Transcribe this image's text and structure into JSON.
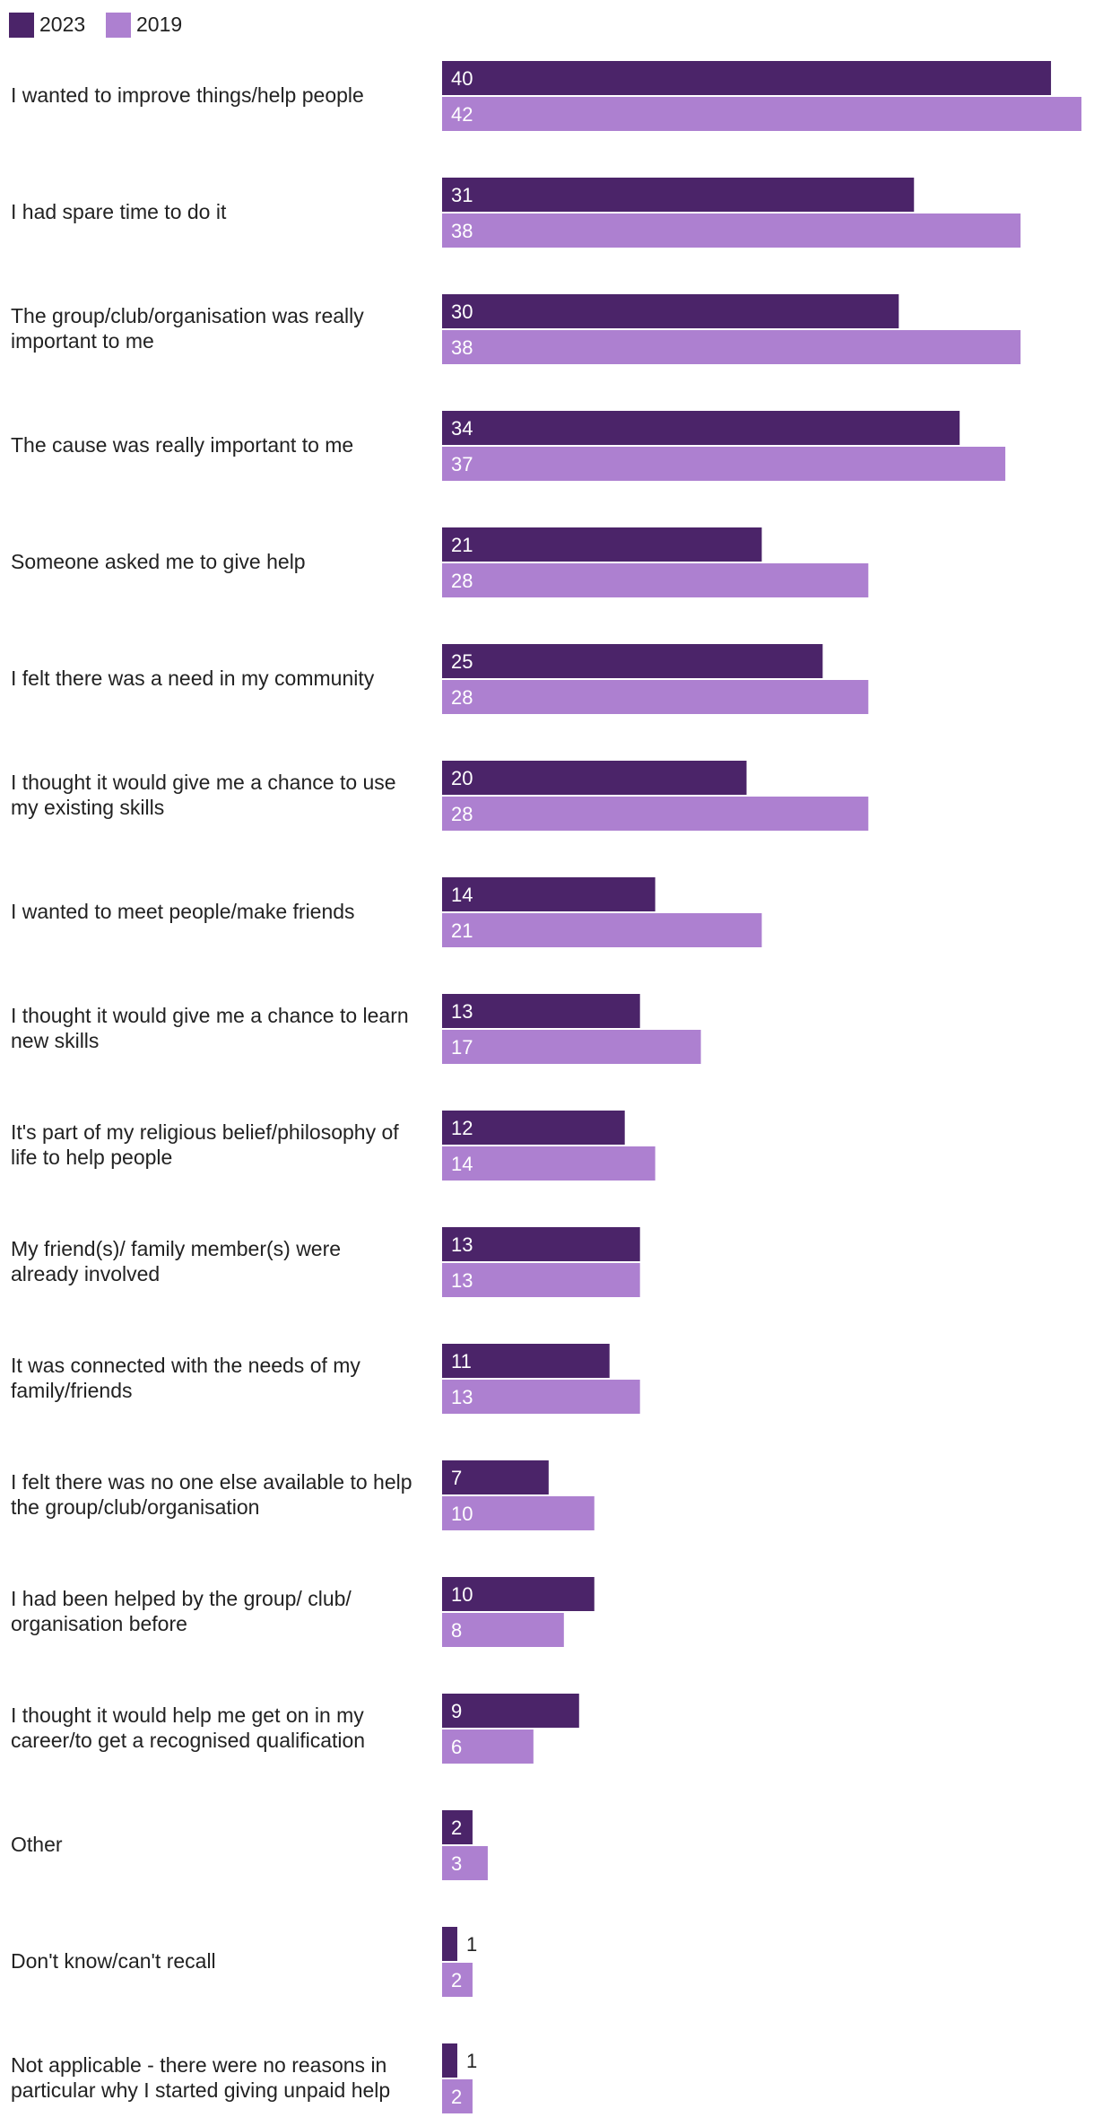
{
  "chart_data": {
    "type": "bar",
    "orientation": "horizontal",
    "title": "",
    "xlabel": "",
    "ylabel": "",
    "xlim": [
      0,
      42
    ],
    "grid": false,
    "legend_position": "top-left",
    "colors": {
      "2023": "#4b2469",
      "2019": "#ad80d0"
    },
    "series": [
      {
        "name": "2023",
        "values": [
          40,
          31,
          30,
          34,
          21,
          25,
          20,
          14,
          13,
          12,
          13,
          11,
          7,
          10,
          9,
          2,
          1,
          1
        ]
      },
      {
        "name": "2019",
        "values": [
          42,
          38,
          38,
          37,
          28,
          28,
          28,
          21,
          17,
          14,
          13,
          13,
          10,
          8,
          6,
          3,
          2,
          2
        ]
      }
    ],
    "categories": [
      [
        "I wanted to improve things/help people"
      ],
      [
        "I had spare time to do it"
      ],
      [
        "The group/club/organisation was really",
        "important to me"
      ],
      [
        "The cause was really important to me"
      ],
      [
        "Someone asked me to give help"
      ],
      [
        "I felt there was a need in my community"
      ],
      [
        "I thought it would give me a chance to use",
        "my existing skills"
      ],
      [
        "I wanted to meet people/make friends"
      ],
      [
        "I thought it would give me a chance to learn",
        "new skills"
      ],
      [
        "It's part of my religious belief/philosophy of",
        "life to help people"
      ],
      [
        "My friend(s)/ family member(s) were",
        "already involved"
      ],
      [
        "It was connected with the needs of my",
        "family/friends"
      ],
      [
        "I felt there was no one else available to help",
        "the group/club/organisation"
      ],
      [
        "I had been helped by the group/ club/",
        "organisation before"
      ],
      [
        "I thought it would help me get on in my",
        "career/to get a recognised qualification"
      ],
      [
        "Other"
      ],
      [
        "Don't know/can't recall"
      ],
      [
        "Not applicable - there were no reasons in",
        "particular why I started giving unpaid help"
      ]
    ]
  }
}
